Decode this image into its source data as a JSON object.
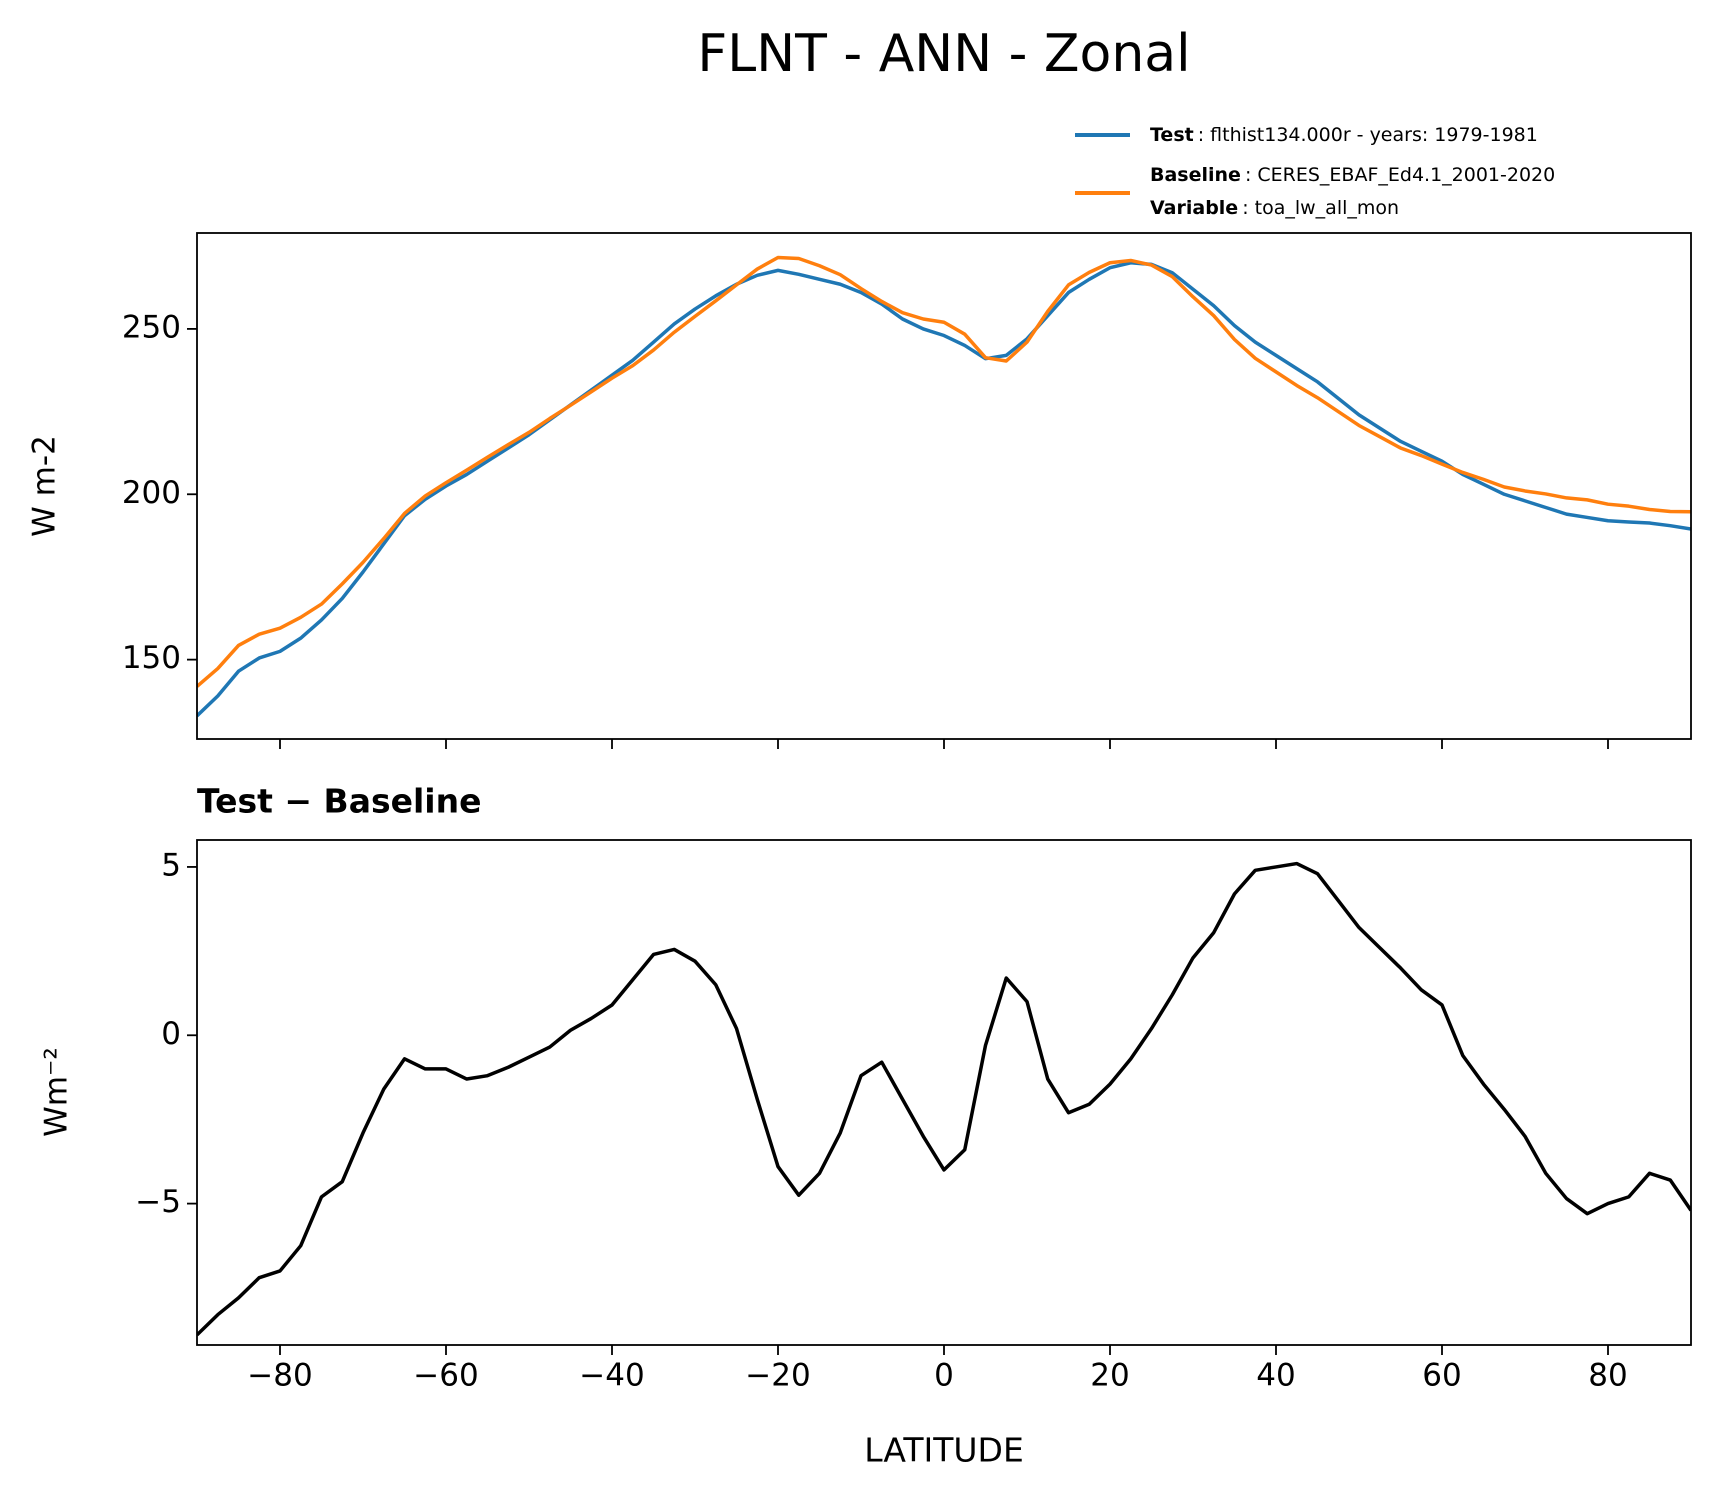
{
  "chart_data": [
    {
      "type": "line",
      "title": "FLNT - ANN - Zonal",
      "ylabel": "W m-2",
      "x": [
        -90,
        -87.5,
        -85,
        -82.5,
        -80,
        -77.5,
        -75,
        -72.5,
        -70,
        -67.5,
        -65,
        -62.5,
        -60,
        -57.5,
        -55,
        -52.5,
        -50,
        -47.5,
        -45,
        -42.5,
        -40,
        -37.5,
        -35,
        -32.5,
        -30,
        -27.5,
        -25,
        -22.5,
        -20,
        -17.5,
        -15,
        -12.5,
        -10,
        -7.5,
        -5,
        -2.5,
        0,
        2.5,
        5,
        7.5,
        10,
        12.5,
        15,
        17.5,
        20,
        22.5,
        25,
        27.5,
        30,
        32.5,
        35,
        37.5,
        40,
        42.5,
        45,
        47.5,
        50,
        52.5,
        55,
        57.5,
        60,
        62.5,
        65,
        67.5,
        70,
        72.5,
        75,
        77.5,
        80,
        82.5,
        85,
        87.5,
        90
      ],
      "series": [
        {
          "name": "Test",
          "description": ": flthist134.000r - years: 1979-1981",
          "color": "#1f77b4",
          "values": [
            133,
            139,
            146.5,
            150.5,
            152.5,
            156.5,
            162,
            168.5,
            176.5,
            185,
            193.5,
            198.5,
            202.5,
            206,
            210,
            214,
            218,
            222.5,
            227,
            231.5,
            236,
            240.5,
            246,
            251.5,
            256,
            260,
            263.5,
            266.2,
            267.7,
            266.5,
            265,
            263.5,
            261,
            257.5,
            253,
            250,
            248,
            245,
            241,
            242,
            247,
            254,
            261,
            265,
            268.5,
            270,
            269.5,
            267,
            262,
            257,
            251,
            246,
            242,
            238,
            234,
            229,
            224,
            220,
            216,
            213,
            210,
            206,
            203,
            200,
            198,
            196,
            194,
            193,
            192,
            191.6,
            191.3,
            190.5,
            189.5
          ]
        },
        {
          "name": "Baseline",
          "description": ": CERES_EBAF_Ed4.1_2001-2020",
          "color": "#ff7f0e",
          "values": [
            141.9,
            147.3,
            154.3,
            157.7,
            159.5,
            162.8,
            166.8,
            172.9,
            179.4,
            186.6,
            194.2,
            199.5,
            203.5,
            207.3,
            211.2,
            215.0,
            218.7,
            222.9,
            226.9,
            231.0,
            235.1,
            238.9,
            243.6,
            249.0,
            253.8,
            258.5,
            263.3,
            268.1,
            271.6,
            271.3,
            269.1,
            266.4,
            262.2,
            258.3,
            254.9,
            253.0,
            252.0,
            248.4,
            241.3,
            240.3,
            246.0,
            255.3,
            263.3,
            267.1,
            270.0,
            270.7,
            269.3,
            265.8,
            259.7,
            254.0,
            246.8,
            241.1,
            237.0,
            232.9,
            229.2,
            225.0,
            220.8,
            217.4,
            214.0,
            211.7,
            209.1,
            206.6,
            204.5,
            202.2,
            201.0,
            200.1,
            198.9,
            198.3,
            197.0,
            196.4,
            195.4,
            194.8,
            194.7
          ]
        }
      ],
      "legend_extra": {
        "label": "Variable",
        "description": ": toa_lw_all_mon"
      },
      "xlim": [
        -90,
        90
      ],
      "ylim": [
        126,
        279
      ],
      "yticks": [
        150,
        200,
        250
      ]
    },
    {
      "type": "line",
      "subtitle": "Test − Baseline",
      "xlabel": "LATITUDE",
      "ylabel": "Wm⁻²",
      "color": "#000000",
      "x": [
        -90,
        -87.5,
        -85,
        -82.5,
        -80,
        -77.5,
        -75,
        -72.5,
        -70,
        -67.5,
        -65,
        -62.5,
        -60,
        -57.5,
        -55,
        -52.5,
        -50,
        -47.5,
        -45,
        -42.5,
        -40,
        -37.5,
        -35,
        -32.5,
        -30,
        -27.5,
        -25,
        -22.5,
        -20,
        -17.5,
        -15,
        -12.5,
        -10,
        -7.5,
        -5,
        -2.5,
        0,
        2.5,
        5,
        7.5,
        10,
        12.5,
        15,
        17.5,
        20,
        22.5,
        25,
        27.5,
        30,
        32.5,
        35,
        37.5,
        40,
        42.5,
        45,
        47.5,
        50,
        52.5,
        55,
        57.5,
        60,
        62.5,
        65,
        67.5,
        70,
        72.5,
        75,
        77.5,
        80,
        82.5,
        85,
        87.5,
        90
      ],
      "values": [
        -8.9,
        -8.3,
        -7.8,
        -7.2,
        -7.0,
        -6.25,
        -4.8,
        -4.35,
        -2.9,
        -1.6,
        -0.7,
        -1.0,
        -1.0,
        -1.3,
        -1.2,
        -0.95,
        -0.65,
        -0.35,
        0.15,
        0.5,
        0.9,
        1.65,
        2.4,
        2.55,
        2.2,
        1.5,
        0.2,
        -1.9,
        -3.9,
        -4.75,
        -4.1,
        -2.9,
        -1.2,
        -0.8,
        -1.9,
        -3.0,
        -4.0,
        -3.4,
        -0.3,
        1.7,
        1.0,
        -1.3,
        -2.3,
        -2.05,
        -1.45,
        -0.7,
        0.2,
        1.2,
        2.3,
        3.05,
        4.2,
        4.9,
        5.0,
        5.1,
        4.8,
        4.0,
        3.2,
        2.6,
        2.0,
        1.35,
        0.9,
        -0.6,
        -1.45,
        -2.2,
        -3.0,
        -4.1,
        -4.85,
        -5.3,
        -5.0,
        -4.8,
        -4.1,
        -4.3,
        -5.2
      ],
      "xlim": [
        -90,
        90
      ],
      "ylim": [
        -9.2,
        5.8
      ],
      "xticks": [
        {
          "value": -80,
          "label": "−80"
        },
        {
          "value": -60,
          "label": "−60"
        },
        {
          "value": -40,
          "label": "−40"
        },
        {
          "value": -20,
          "label": "−20"
        },
        0,
        20,
        40,
        60,
        80
      ],
      "yticks": [
        {
          "value": -5,
          "label": "−5"
        },
        0,
        5
      ]
    }
  ]
}
